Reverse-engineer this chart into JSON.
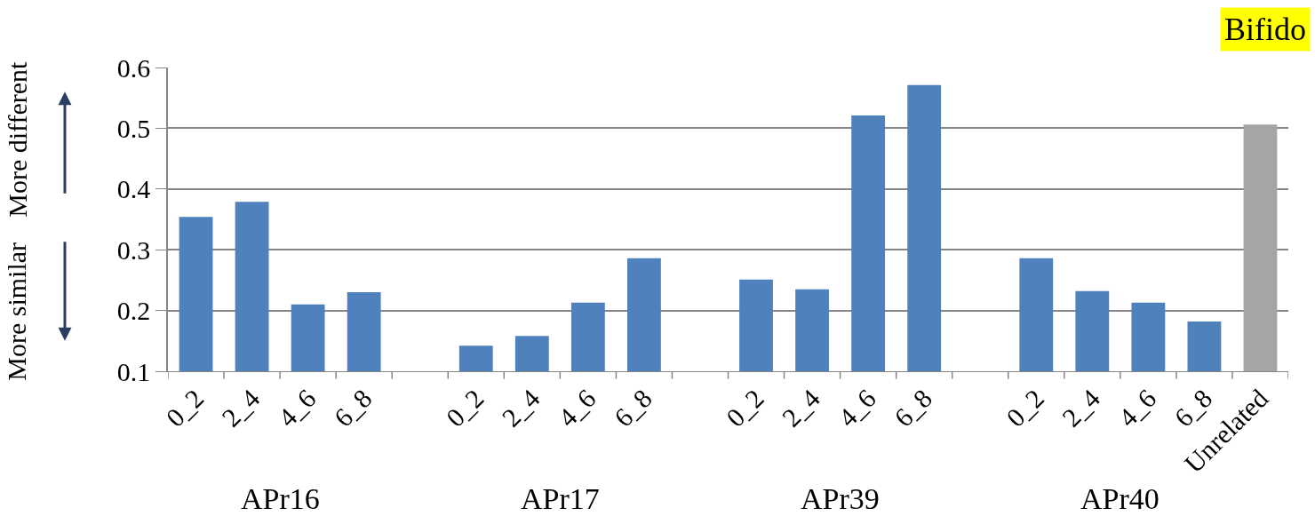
{
  "chart_data": {
    "type": "bar",
    "title": "Bifido",
    "categories": [
      "0_2",
      "2_4",
      "4_6",
      "6_8",
      null,
      "0_2",
      "2_4",
      "4_6",
      "6_8",
      null,
      "0_2",
      "2_4",
      "4_6",
      "6_8",
      null,
      "0_2",
      "2_4",
      "4_6",
      "6_8",
      "Unrelated"
    ],
    "values": [
      0.354,
      0.379,
      0.21,
      0.23,
      null,
      0.142,
      0.158,
      0.213,
      0.286,
      null,
      0.251,
      0.235,
      0.521,
      0.571,
      null,
      0.286,
      0.232,
      0.213,
      0.182,
      0.506
    ],
    "colors": [
      "#4f81bd",
      "#4f81bd",
      "#4f81bd",
      "#4f81bd",
      null,
      "#4f81bd",
      "#4f81bd",
      "#4f81bd",
      "#4f81bd",
      null,
      "#4f81bd",
      "#4f81bd",
      "#4f81bd",
      "#4f81bd",
      null,
      "#4f81bd",
      "#4f81bd",
      "#4f81bd",
      "#4f81bd",
      "#a5a5a5"
    ],
    "annotations": [
      "More different",
      "More similar",
      "APr16",
      "APr17",
      "APr39",
      "APr40"
    ],
    "ylim": [
      0.1,
      0.6
    ],
    "yticks": [
      0.1,
      0.2,
      0.3,
      0.4,
      0.5,
      0.6
    ],
    "grid": "y"
  }
}
